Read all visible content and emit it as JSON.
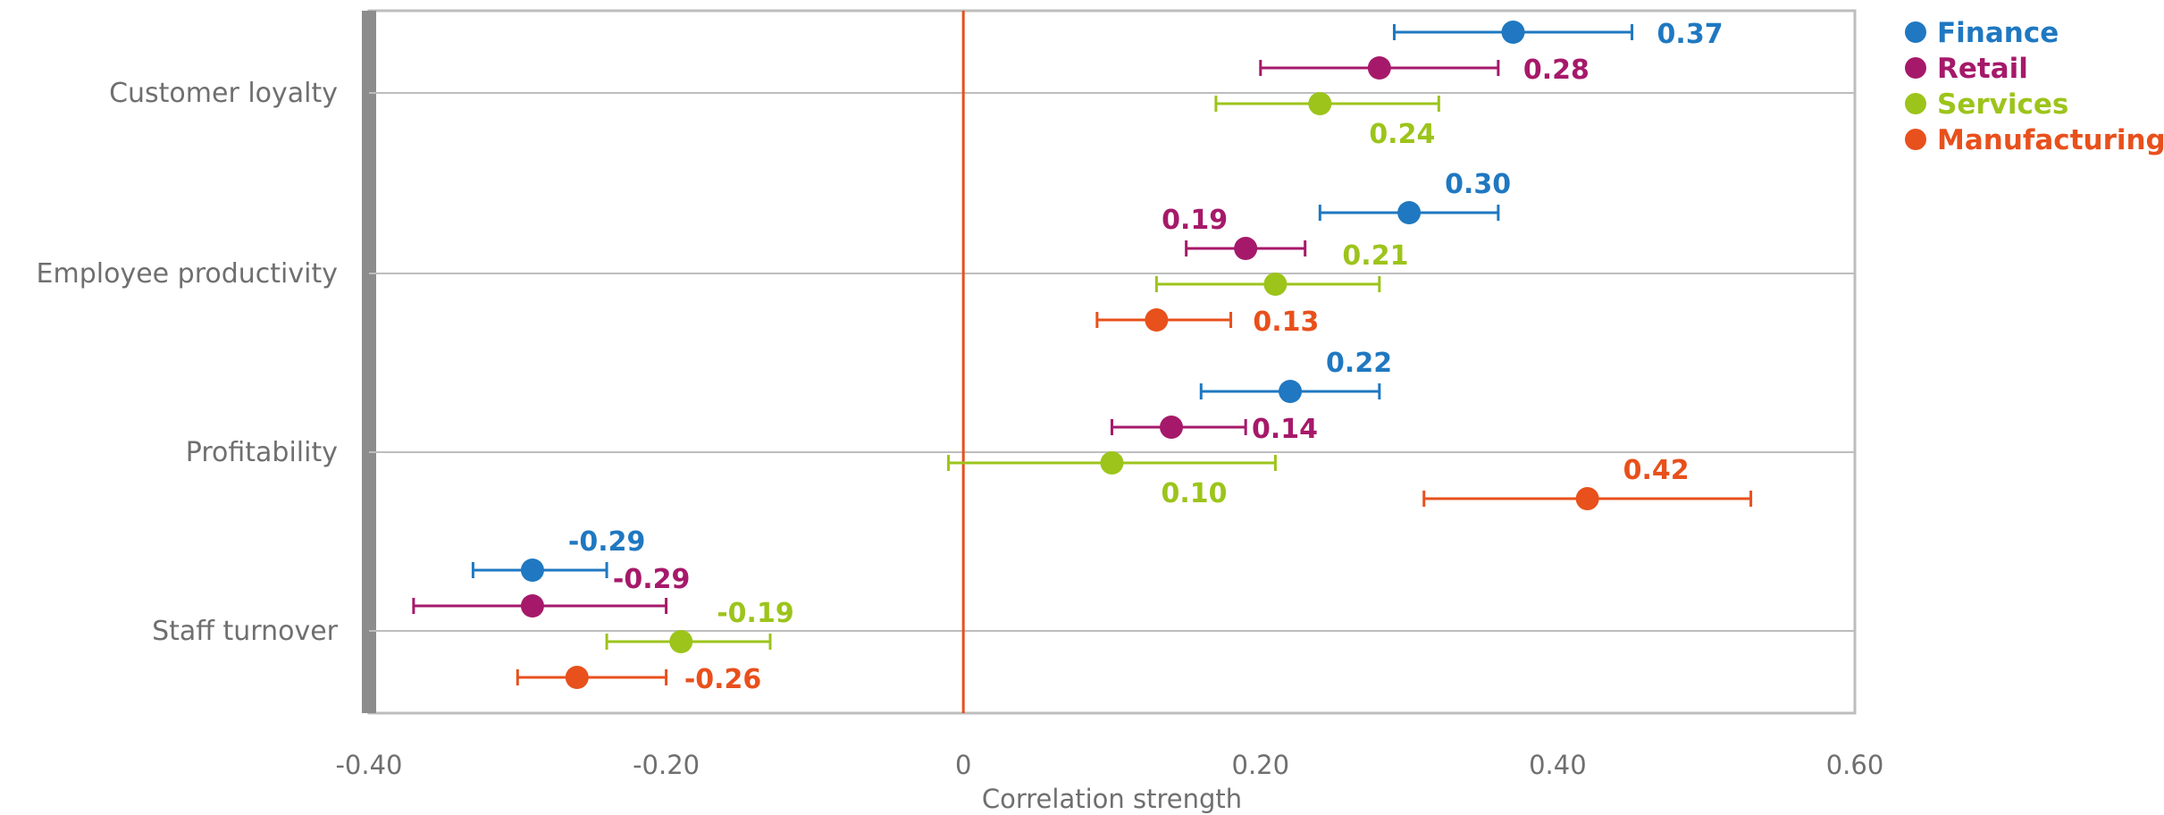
{
  "chart_data": {
    "type": "scatter",
    "subtype": "dot-plot with error bars",
    "xlabel": "Correlation strength",
    "xlim": [
      -0.4,
      0.6
    ],
    "x_ticks": [
      -0.4,
      -0.2,
      0,
      0.2,
      0.4,
      0.6
    ],
    "x_tick_labels": [
      "-0.40",
      "-0.20",
      "0",
      "0.20",
      "0.40",
      "0.60"
    ],
    "reference_line": 0,
    "gridlines": "horizontal, at each category",
    "legend_position": "top-right",
    "categories": [
      "Customer loyalty",
      "Employee productivity",
      "Profitability",
      "Staff turnover"
    ],
    "series": [
      {
        "name": "Finance",
        "color": "#1f78c1",
        "points": [
          {
            "category": "Customer loyalty",
            "value": 0.37,
            "label": "0.37",
            "ci": [
              0.29,
              0.45
            ]
          },
          {
            "category": "Employee productivity",
            "value": 0.3,
            "label": "0.30",
            "ci": [
              0.24,
              0.36
            ]
          },
          {
            "category": "Profitability",
            "value": 0.22,
            "label": "0.22",
            "ci": [
              0.16,
              0.28
            ]
          },
          {
            "category": "Staff turnover",
            "value": -0.29,
            "label": "-0.29",
            "ci": [
              -0.33,
              -0.24
            ]
          }
        ]
      },
      {
        "name": "Retail",
        "color": "#a6196a",
        "points": [
          {
            "category": "Customer loyalty",
            "value": 0.28,
            "label": "0.28",
            "ci": [
              0.2,
              0.36
            ]
          },
          {
            "category": "Employee productivity",
            "value": 0.19,
            "label": "0.19",
            "ci": [
              0.15,
              0.23
            ]
          },
          {
            "category": "Profitability",
            "value": 0.14,
            "label": "0.14",
            "ci": [
              0.1,
              0.19
            ]
          },
          {
            "category": "Staff turnover",
            "value": -0.29,
            "label": "-0.29",
            "ci": [
              -0.37,
              -0.2
            ]
          }
        ]
      },
      {
        "name": "Services",
        "color": "#9cc41b",
        "points": [
          {
            "category": "Customer loyalty",
            "value": 0.24,
            "label": "0.24",
            "ci": [
              0.17,
              0.32
            ]
          },
          {
            "category": "Employee productivity",
            "value": 0.21,
            "label": "0.21",
            "ci": [
              0.13,
              0.28
            ]
          },
          {
            "category": "Profitability",
            "value": 0.1,
            "label": "0.10",
            "ci": [
              -0.01,
              0.21
            ]
          },
          {
            "category": "Staff turnover",
            "value": -0.19,
            "label": "-0.19",
            "ci": [
              -0.24,
              -0.13
            ]
          }
        ]
      },
      {
        "name": "Manufacturing",
        "color": "#e8501c",
        "points": [
          {
            "category": "Employee productivity",
            "value": 0.13,
            "label": "0.13",
            "ci": [
              0.09,
              0.18
            ]
          },
          {
            "category": "Profitability",
            "value": 0.42,
            "label": "0.42",
            "ci": [
              0.31,
              0.53
            ]
          },
          {
            "category": "Staff turnover",
            "value": -0.26,
            "label": "-0.26",
            "ci": [
              -0.3,
              -0.2
            ]
          }
        ]
      }
    ]
  }
}
